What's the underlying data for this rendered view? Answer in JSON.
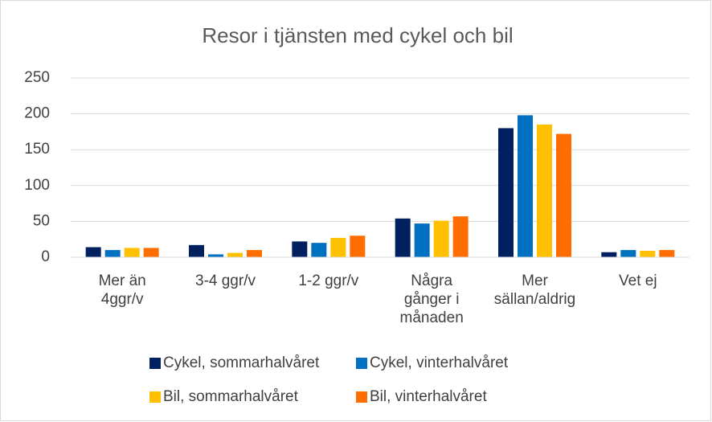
{
  "chart_data": {
    "type": "bar",
    "title": "Resor i tjänsten med cykel och bil",
    "categories": [
      "Mer än\n4ggr/v",
      "3-4 ggr/v",
      "1-2 ggr/v",
      "Några\ngånger i\nmånaden",
      "Mer\nsällan/aldrig",
      "Vet ej"
    ],
    "series": [
      {
        "name": "Cykel, sommarhalvåret",
        "color": "#002060",
        "values": [
          14,
          17,
          22,
          54,
          180,
          7
        ]
      },
      {
        "name": "Cykel, vinterhalvåret",
        "color": "#0070c0",
        "values": [
          10,
          4,
          20,
          47,
          198,
          10
        ]
      },
      {
        "name": "Bil, sommarhalvåret",
        "color": "#ffc000",
        "values": [
          13,
          6,
          27,
          51,
          185,
          9
        ]
      },
      {
        "name": "Bil, vinterhalvåret",
        "color": "#ff6d00",
        "values": [
          13,
          10,
          30,
          57,
          172,
          10
        ]
      }
    ],
    "ylim": [
      0,
      250
    ],
    "yticks": [
      0,
      50,
      100,
      150,
      200,
      250
    ],
    "grid": true,
    "legend": "bottom"
  }
}
